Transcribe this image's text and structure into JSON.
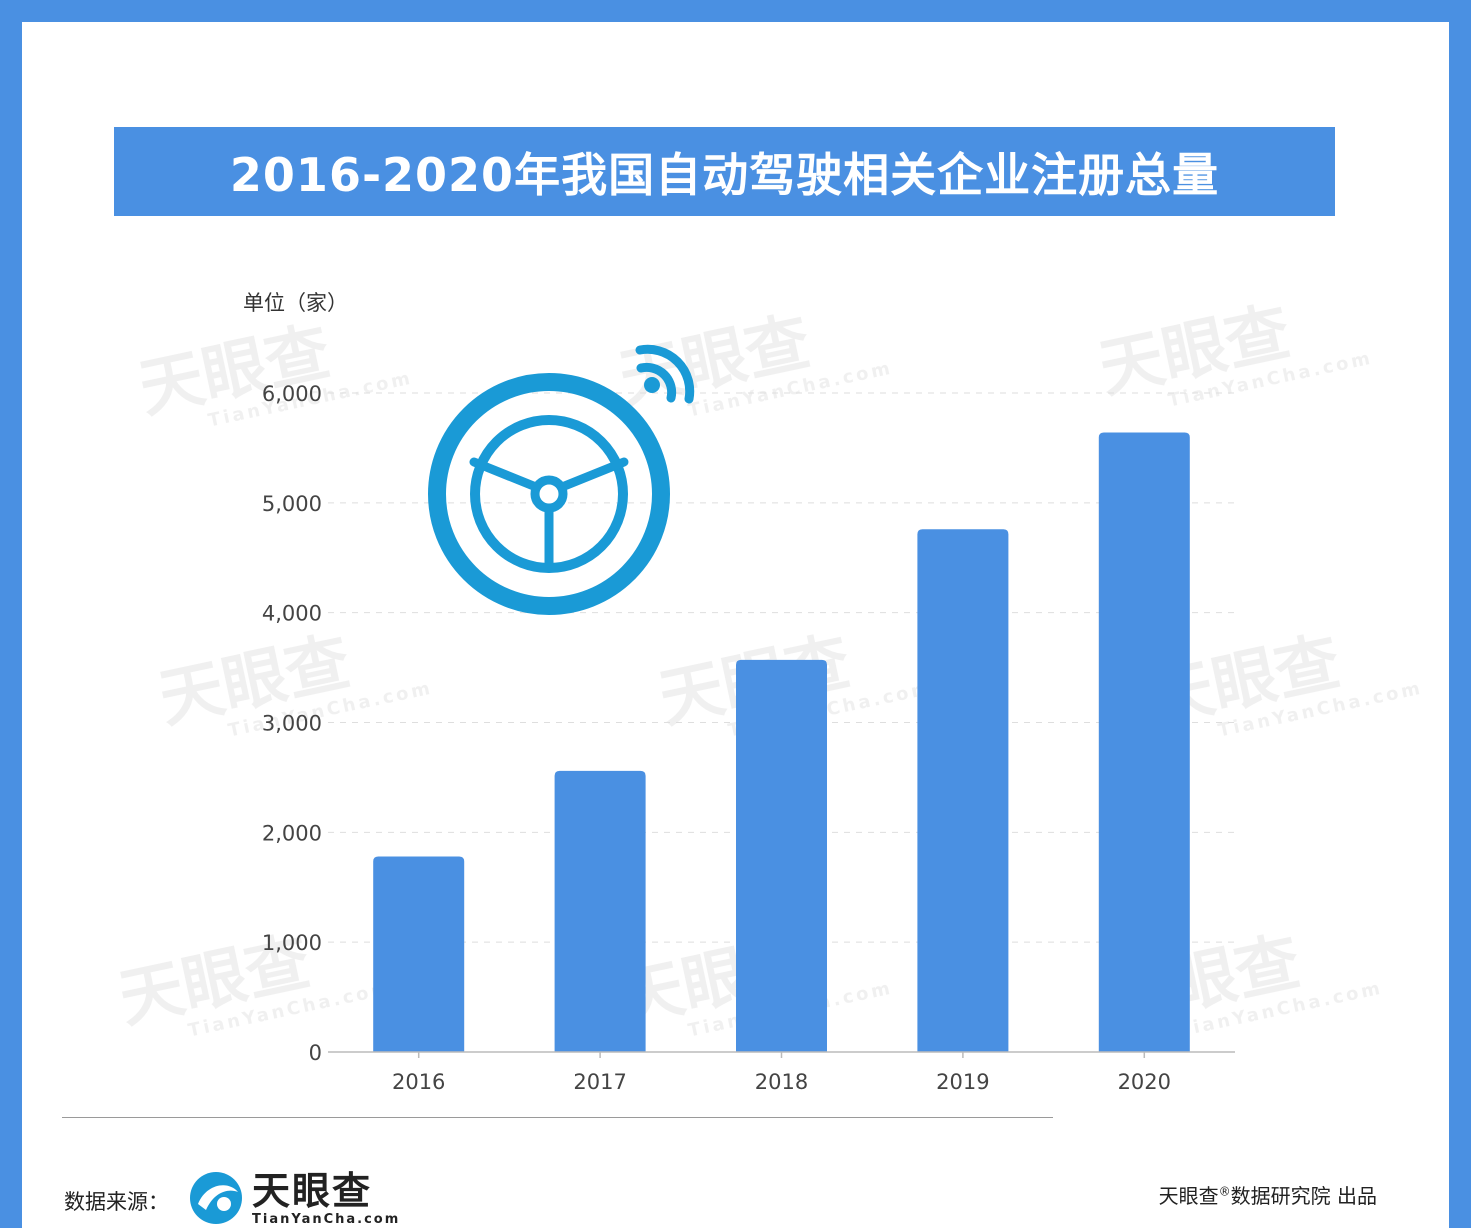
{
  "title": "2016-2020年我国自动驾驶相关企业注册总量",
  "unit_label": "单位（家）",
  "source_label": "数据来源：",
  "logo": {
    "cn": "天眼查",
    "en": "TianYanCha.com"
  },
  "producer": {
    "brand": "天眼查",
    "mark": "®",
    "rest": "数据研究院 出品"
  },
  "watermark": {
    "cn": "天眼查",
    "en": "TianYanCha.com"
  },
  "colors": {
    "frame": "#4a90e2",
    "bar": "#4a90e2",
    "icon": "#1a9ad6",
    "grid": "#dedede",
    "text": "#333333"
  },
  "icon": "steering-wheel-with-wifi-icon",
  "chart_data": {
    "type": "bar",
    "categories": [
      "2016",
      "2017",
      "2018",
      "2019",
      "2020"
    ],
    "values": [
      1780,
      2560,
      3570,
      4760,
      5640
    ],
    "yticks": [
      0,
      1000,
      2000,
      3000,
      4000,
      5000,
      6000
    ],
    "ytick_labels": [
      "0",
      "1,000",
      "2,000",
      "3,000",
      "4,000",
      "5,000",
      "6,000"
    ],
    "ylim": [
      0,
      6000
    ],
    "grid": true
  }
}
